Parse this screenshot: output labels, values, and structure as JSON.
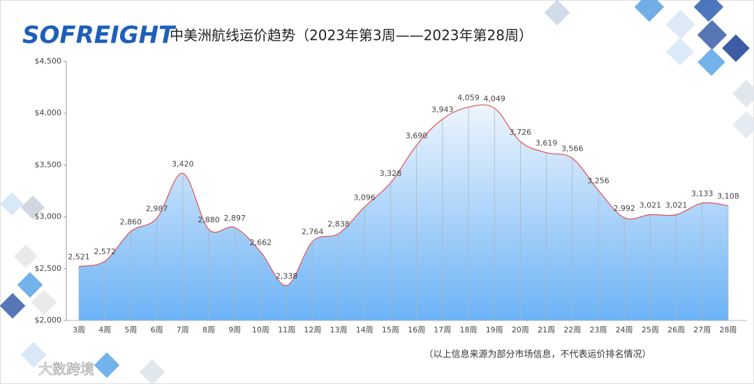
{
  "chart_data": {
    "type": "area",
    "title": "中美洲航线运价趋势（2023年第3周——2023年第28周）",
    "logo": "SOFREIGHT",
    "watermark": "大数跨境",
    "note": "（以上信息来源为部分市场信息，不代表运价排名情况）",
    "categories": [
      "3周",
      "4周",
      "5周",
      "6周",
      "7周",
      "8周",
      "9周",
      "10周",
      "11周",
      "12周",
      "13周",
      "14周",
      "15周",
      "16周",
      "17周",
      "18周",
      "19周",
      "20周",
      "21周",
      "22周",
      "23周",
      "24周",
      "25周",
      "26周",
      "27周",
      "28周"
    ],
    "values": [
      2521,
      2572,
      2860,
      2987,
      3420,
      2880,
      2897,
      2662,
      2338,
      2764,
      2838,
      3096,
      3328,
      3690,
      3943,
      4059,
      4049,
      3726,
      3619,
      3566,
      3256,
      2992,
      3021,
      3021,
      3133,
      3108
    ],
    "value_labels": [
      "2,521",
      "2,572",
      "2,860",
      "2,987",
      "3,420",
      "2,880",
      "2,897",
      "2,662",
      "2,338",
      "2,764",
      "2,838",
      "3,096",
      "3,328",
      "3,690",
      "3,943",
      "4,059",
      "4,049",
      "3,726",
      "3,619",
      "3,566",
      "3,256",
      "2,992",
      "3,021",
      "3,021",
      "3,133",
      "3,108"
    ],
    "line_color": "#e05050",
    "ylim": [
      2000,
      4500
    ],
    "yticks": [
      {
        "value": 2000,
        "label": "$2,000"
      },
      {
        "value": 2500,
        "label": "$2,500"
      },
      {
        "value": 3000,
        "label": "$3,000"
      },
      {
        "value": 3500,
        "label": "$3,500"
      },
      {
        "value": 4000,
        "label": "$4,000"
      },
      {
        "value": 4500,
        "label": "$4,500"
      }
    ]
  }
}
